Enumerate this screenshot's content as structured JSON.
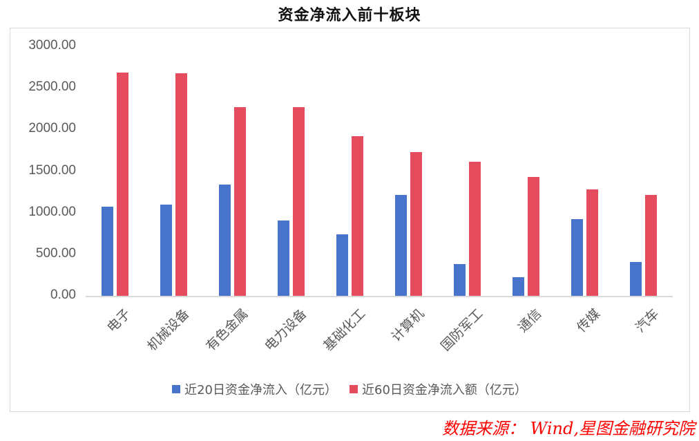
{
  "title": "资金净流入前十板块",
  "source": "数据来源：  Wind,星图金融研究院",
  "colors": {
    "series1": "#4874cb",
    "series2": "#e54c5e",
    "axis_text": "#595959",
    "gridline": "#d9d9d9",
    "source_text": "#ff0000"
  },
  "y_axis": {
    "ticks": [
      "3000.00",
      "2500.00",
      "2000.00",
      "1500.00",
      "1000.00",
      "500.00",
      "0.00"
    ]
  },
  "legend": {
    "items": [
      {
        "label": "近20日资金净流入（亿元）",
        "color": "#4874cb"
      },
      {
        "label": "近60日资金净流入额（亿元）",
        "color": "#e54c5e"
      }
    ]
  },
  "chart_data": {
    "type": "bar",
    "title": "资金净流入前十板块",
    "xlabel": "",
    "ylabel": "",
    "ylim": [
      0,
      3000
    ],
    "grid": false,
    "legend_position": "bottom",
    "categories": [
      "电子",
      "机械设备",
      "有色金属",
      "电力设备",
      "基础化工",
      "计算机",
      "国防军工",
      "通信",
      "传媒",
      "汽车"
    ],
    "series": [
      {
        "name": "近20日资金净流入（亿元）",
        "color": "#4874cb",
        "values": [
          1072,
          1097,
          1338,
          906,
          740,
          1214,
          382,
          224,
          923,
          407
        ]
      },
      {
        "name": "近60日资金净流入额（亿元）",
        "color": "#e54c5e",
        "values": [
          2685,
          2677,
          2269,
          2269,
          1920,
          1729,
          1613,
          1430,
          1280,
          1214
        ]
      }
    ],
    "source": "数据来源：  Wind,星图金融研究院"
  }
}
